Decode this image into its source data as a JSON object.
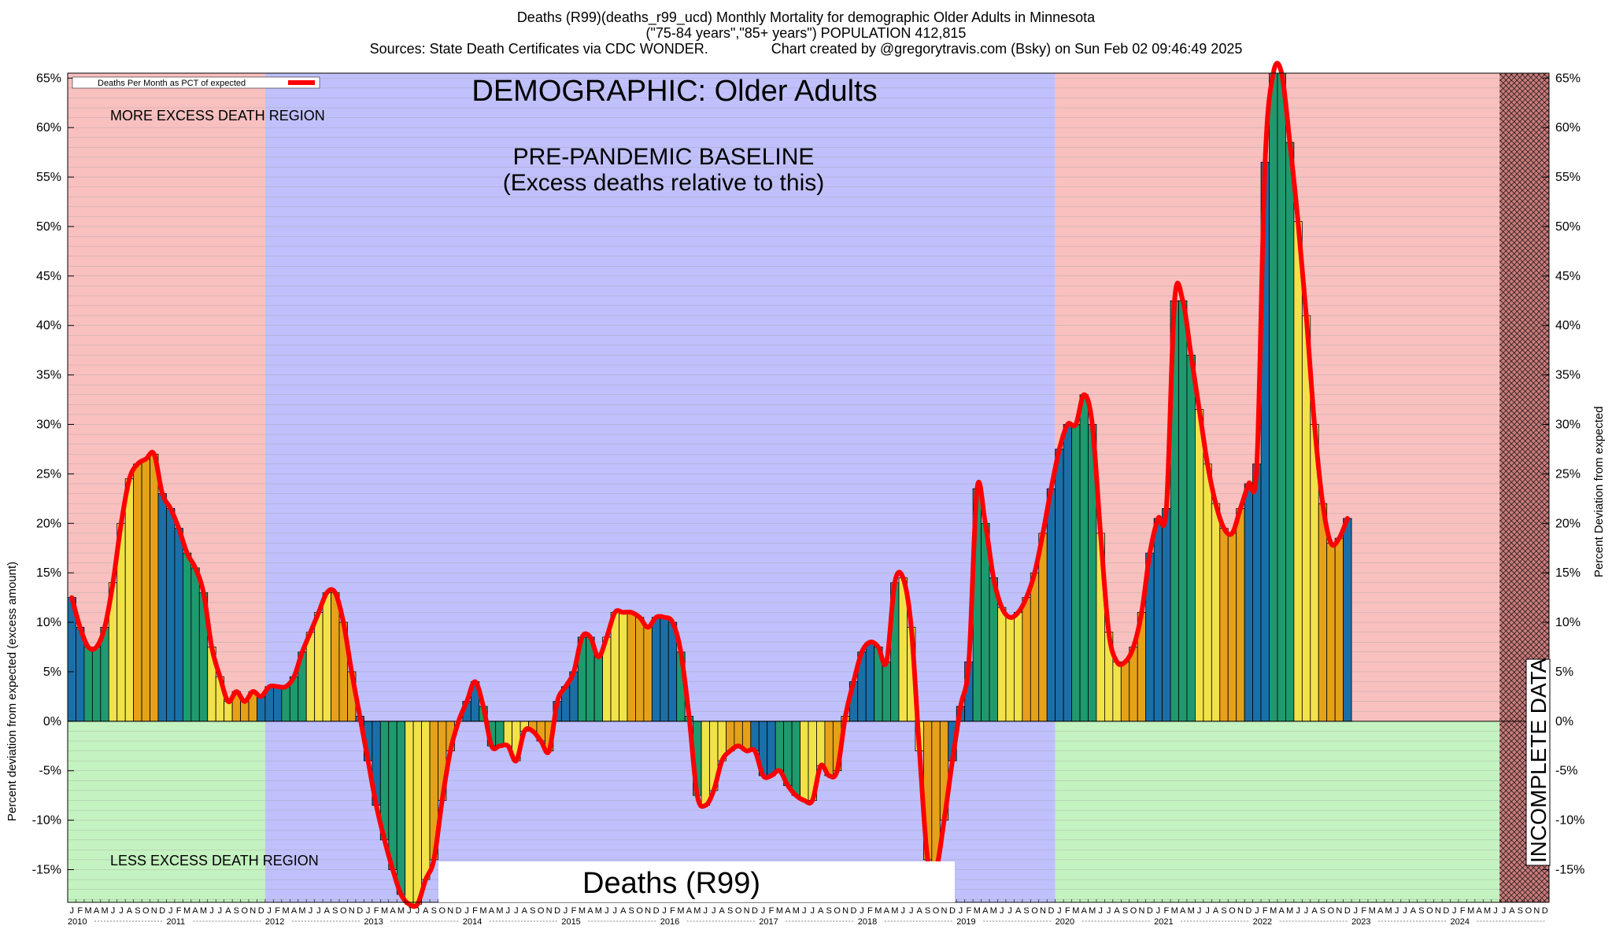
{
  "header": {
    "line1": "Deaths (R99)(deaths_r99_ucd) Monthly Mortality for demographic Older Adults in Minnesota",
    "line2": "(\"75-84 years\",\"85+ years\") POPULATION 412,815",
    "line3": "Sources: State Death Certificates via CDC WONDER.                Chart created by @gregorytravis.com (Bsky) on Sun Feb 02 09:46:49 2025"
  },
  "labels": {
    "demographic": "DEMOGRAPHIC: Older Adults",
    "baseline_line1": "PRE-PANDEMIC BASELINE",
    "baseline_line2": "(Excess deaths relative to this)",
    "more_excess": "MORE EXCESS DEATH REGION",
    "less_excess": "LESS EXCESS DEATH REGION",
    "incomplete": "INCOMPLETE DATA",
    "cause": "Deaths (R99)",
    "legend": "Deaths Per Month as PCT of expected"
  },
  "colors": {
    "excess_region": "#f9c0c0",
    "less_region": "#c4f2c0",
    "baseline_region": "#c0c0fc",
    "incomplete_region": "#c77a7a",
    "line": "#ff0000",
    "winter": "#1b6fa8",
    "spring": "#1e9a6e",
    "summer": "#f2e24a",
    "fall": "#e6a11a"
  },
  "chart_data": {
    "type": "bar",
    "title": "Deaths (R99)(deaths_r99_ucd) Monthly Mortality for demographic Older Adults in Minnesota",
    "ylabel": "Percent deviation from expected (excess amount)",
    "ylabel_right": "Percent Deviation from expected",
    "ylim": [
      -18.3,
      65.5
    ],
    "yticks": [
      65,
      60,
      55,
      50,
      45,
      40,
      35,
      30,
      25,
      20,
      15,
      10,
      5,
      0,
      -5,
      -10,
      -15
    ],
    "ytick_labels": [
      "65%",
      "60%",
      "55%",
      "50%",
      "45%",
      "40%",
      "35%",
      "30%",
      "25%",
      "20%",
      "15%",
      "10%",
      "5%",
      "0%",
      "-5%",
      "-10%",
      "-15%"
    ],
    "grid": true,
    "legend": "top-left",
    "years": [
      "2010",
      "2011",
      "2012",
      "2013",
      "2014",
      "2015",
      "2016",
      "2017",
      "2018",
      "2019",
      "2020",
      "2021",
      "2022",
      "2023",
      "2024"
    ],
    "month_letters": [
      "J",
      "F",
      "M",
      "A",
      "M",
      "J",
      "J",
      "A",
      "S",
      "O",
      "N",
      "D"
    ],
    "shaded_regions": [
      {
        "name": "more-less-excess-2010-2011",
        "start": 0,
        "end": 24
      },
      {
        "name": "pre-pandemic-baseline",
        "start": 24,
        "end": 120
      },
      {
        "name": "more-less-excess-2020-2024",
        "start": 120,
        "end": 174
      },
      {
        "name": "incomplete-data",
        "start": 174,
        "end": 180
      }
    ],
    "series": [
      {
        "name": "Deaths Per Month as PCT of expected",
        "start": "2010-01",
        "values": [
          12.5,
          9.5,
          7.5,
          7.5,
          9.5,
          14,
          20,
          24.5,
          26,
          26.5,
          27,
          23,
          21.5,
          19.5,
          17,
          15.5,
          13,
          7.5,
          4.5,
          2,
          3,
          2,
          3,
          2.5,
          3.5,
          3.5,
          3.5,
          4.5,
          7,
          9,
          11,
          13,
          13,
          10,
          5,
          0.5,
          -4,
          -8.5,
          -12,
          -15,
          -17.5,
          -18.5,
          -18.5,
          -16,
          -14,
          -8,
          -3,
          0,
          2,
          4,
          1.5,
          -2.5,
          -2.5,
          -2.5,
          -4,
          -1,
          -1,
          -2,
          -3,
          2,
          3.5,
          5,
          8.5,
          8.5,
          6.5,
          8.5,
          11,
          11,
          11,
          10.5,
          9.5,
          10.5,
          10.5,
          10,
          7,
          0.5,
          -7.5,
          -8.5,
          -7,
          -4,
          -3,
          -2.5,
          -3,
          -3,
          -5.5,
          -5.5,
          -5,
          -6.5,
          -7.5,
          -8,
          -8,
          -4.5,
          -5.5,
          -5,
          0.5,
          4,
          7,
          8,
          7.5,
          6,
          14,
          14.5,
          9.5,
          -3,
          -14,
          -15,
          -10,
          -4,
          1.5,
          6,
          23.5,
          20,
          14.5,
          11.5,
          10.5,
          11,
          12.5,
          15,
          19,
          23.5,
          27.5,
          30,
          30,
          33,
          30,
          19,
          9,
          6,
          6,
          7.5,
          11,
          17,
          20.5,
          21.5,
          42.5,
          42.5,
          37,
          31.5,
          26,
          22,
          19.5,
          19,
          21.5,
          24,
          26,
          56.5,
          65.5,
          65.5,
          58.5,
          50.5,
          41,
          30,
          22,
          18,
          18.5,
          20.5
        ]
      }
    ]
  }
}
